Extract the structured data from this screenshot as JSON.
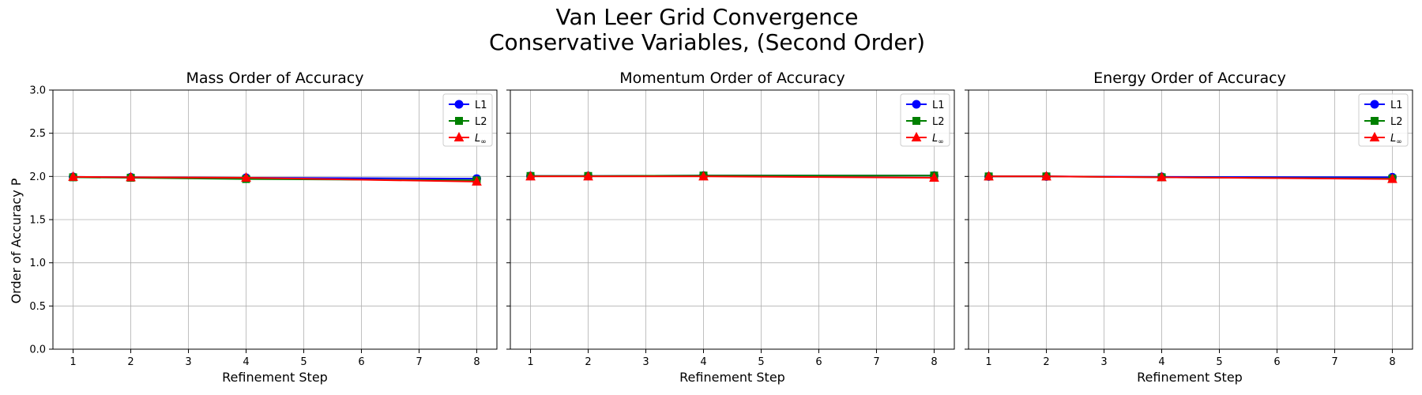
{
  "figure": {
    "title_lines": [
      "Van Leer Grid Convergence",
      "Conservative Variables, (Second Order)"
    ]
  },
  "chart_data": [
    {
      "type": "line",
      "title": "Mass Order of Accuracy",
      "xlabel": "Refinement Step",
      "ylabel": "Order of Accuracy P",
      "x": [
        1,
        2,
        4,
        8
      ],
      "xlim": [
        0.65,
        8.35
      ],
      "ylim": [
        0.0,
        3.0
      ],
      "xticks": [
        1,
        2,
        3,
        4,
        5,
        6,
        7,
        8
      ],
      "yticks": [
        "0.0",
        "0.5",
        "1.0",
        "1.5",
        "2.0",
        "2.5",
        "3.0"
      ],
      "grid": true,
      "legend": "top-right",
      "series": [
        {
          "name": "L1",
          "color": "#0000ff",
          "marker": "circle",
          "values": [
            1.995,
            1.99,
            1.985,
            1.975
          ]
        },
        {
          "name": "L2",
          "color": "#008000",
          "marker": "square",
          "values": [
            1.99,
            1.985,
            1.97,
            1.955
          ]
        },
        {
          "name": "L",
          "sub": "∞",
          "color": "#ff0000",
          "marker": "triangle",
          "values": [
            1.995,
            1.99,
            1.985,
            1.94
          ]
        }
      ]
    },
    {
      "type": "line",
      "title": "Momentum Order of Accuracy",
      "xlabel": "Refinement Step",
      "ylabel": "",
      "x": [
        1,
        2,
        4,
        8
      ],
      "xlim": [
        0.65,
        8.35
      ],
      "ylim": [
        0.0,
        3.0
      ],
      "xticks": [
        1,
        2,
        3,
        4,
        5,
        6,
        7,
        8
      ],
      "yticks": [
        "",
        "",
        "",
        "",
        "",
        "",
        ""
      ],
      "grid": true,
      "legend": "top-right",
      "series": [
        {
          "name": "L1",
          "color": "#0000ff",
          "marker": "circle",
          "values": [
            2.005,
            2.005,
            2.01,
            2.01
          ]
        },
        {
          "name": "L2",
          "color": "#008000",
          "marker": "square",
          "values": [
            2.005,
            2.005,
            2.01,
            2.01
          ]
        },
        {
          "name": "L",
          "sub": "∞",
          "color": "#ff0000",
          "marker": "triangle",
          "values": [
            2.0,
            2.0,
            2.0,
            1.985
          ]
        }
      ]
    },
    {
      "type": "line",
      "title": "Energy Order of Accuracy",
      "xlabel": "Refinement Step",
      "ylabel": "",
      "x": [
        1,
        2,
        4,
        8
      ],
      "xlim": [
        0.65,
        8.35
      ],
      "ylim": [
        0.0,
        3.0
      ],
      "xticks": [
        1,
        2,
        3,
        4,
        5,
        6,
        7,
        8
      ],
      "yticks": [
        "",
        "",
        "",
        "",
        "",
        "",
        ""
      ],
      "grid": true,
      "legend": "top-right",
      "series": [
        {
          "name": "L1",
          "color": "#0000ff",
          "marker": "circle",
          "values": [
            2.0,
            2.0,
            1.995,
            1.99
          ]
        },
        {
          "name": "L2",
          "color": "#008000",
          "marker": "square",
          "values": [
            2.0,
            2.0,
            1.99,
            1.975
          ]
        },
        {
          "name": "L",
          "sub": "∞",
          "color": "#ff0000",
          "marker": "triangle",
          "values": [
            2.0,
            2.0,
            1.99,
            1.97
          ]
        }
      ]
    }
  ]
}
